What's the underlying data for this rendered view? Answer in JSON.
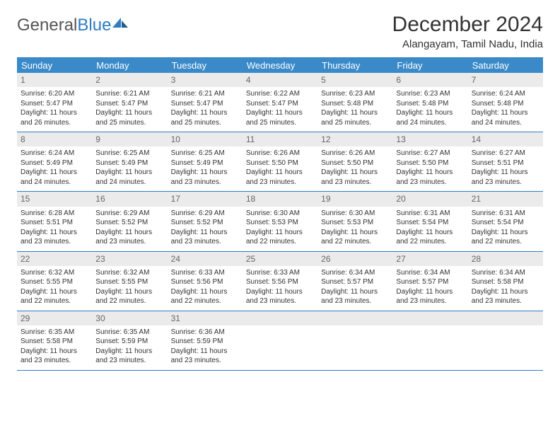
{
  "brand": {
    "part1": "General",
    "part2": "Blue"
  },
  "title": "December 2024",
  "location": "Alangayam, Tamil Nadu, India",
  "colors": {
    "header_bar": "#3a8ac9",
    "rule": "#2e7cc2",
    "daynum_bg": "#ebebeb",
    "text": "#333333",
    "white": "#ffffff"
  },
  "weekdays": [
    "Sunday",
    "Monday",
    "Tuesday",
    "Wednesday",
    "Thursday",
    "Friday",
    "Saturday"
  ],
  "weeks": [
    [
      {
        "n": "1",
        "sr": "6:20 AM",
        "ss": "5:47 PM",
        "dl": "11 hours and 26 minutes."
      },
      {
        "n": "2",
        "sr": "6:21 AM",
        "ss": "5:47 PM",
        "dl": "11 hours and 25 minutes."
      },
      {
        "n": "3",
        "sr": "6:21 AM",
        "ss": "5:47 PM",
        "dl": "11 hours and 25 minutes."
      },
      {
        "n": "4",
        "sr": "6:22 AM",
        "ss": "5:47 PM",
        "dl": "11 hours and 25 minutes."
      },
      {
        "n": "5",
        "sr": "6:23 AM",
        "ss": "5:48 PM",
        "dl": "11 hours and 25 minutes."
      },
      {
        "n": "6",
        "sr": "6:23 AM",
        "ss": "5:48 PM",
        "dl": "11 hours and 24 minutes."
      },
      {
        "n": "7",
        "sr": "6:24 AM",
        "ss": "5:48 PM",
        "dl": "11 hours and 24 minutes."
      }
    ],
    [
      {
        "n": "8",
        "sr": "6:24 AM",
        "ss": "5:49 PM",
        "dl": "11 hours and 24 minutes."
      },
      {
        "n": "9",
        "sr": "6:25 AM",
        "ss": "5:49 PM",
        "dl": "11 hours and 24 minutes."
      },
      {
        "n": "10",
        "sr": "6:25 AM",
        "ss": "5:49 PM",
        "dl": "11 hours and 23 minutes."
      },
      {
        "n": "11",
        "sr": "6:26 AM",
        "ss": "5:50 PM",
        "dl": "11 hours and 23 minutes."
      },
      {
        "n": "12",
        "sr": "6:26 AM",
        "ss": "5:50 PM",
        "dl": "11 hours and 23 minutes."
      },
      {
        "n": "13",
        "sr": "6:27 AM",
        "ss": "5:50 PM",
        "dl": "11 hours and 23 minutes."
      },
      {
        "n": "14",
        "sr": "6:27 AM",
        "ss": "5:51 PM",
        "dl": "11 hours and 23 minutes."
      }
    ],
    [
      {
        "n": "15",
        "sr": "6:28 AM",
        "ss": "5:51 PM",
        "dl": "11 hours and 23 minutes."
      },
      {
        "n": "16",
        "sr": "6:29 AM",
        "ss": "5:52 PM",
        "dl": "11 hours and 23 minutes."
      },
      {
        "n": "17",
        "sr": "6:29 AM",
        "ss": "5:52 PM",
        "dl": "11 hours and 23 minutes."
      },
      {
        "n": "18",
        "sr": "6:30 AM",
        "ss": "5:53 PM",
        "dl": "11 hours and 22 minutes."
      },
      {
        "n": "19",
        "sr": "6:30 AM",
        "ss": "5:53 PM",
        "dl": "11 hours and 22 minutes."
      },
      {
        "n": "20",
        "sr": "6:31 AM",
        "ss": "5:54 PM",
        "dl": "11 hours and 22 minutes."
      },
      {
        "n": "21",
        "sr": "6:31 AM",
        "ss": "5:54 PM",
        "dl": "11 hours and 22 minutes."
      }
    ],
    [
      {
        "n": "22",
        "sr": "6:32 AM",
        "ss": "5:55 PM",
        "dl": "11 hours and 22 minutes."
      },
      {
        "n": "23",
        "sr": "6:32 AM",
        "ss": "5:55 PM",
        "dl": "11 hours and 22 minutes."
      },
      {
        "n": "24",
        "sr": "6:33 AM",
        "ss": "5:56 PM",
        "dl": "11 hours and 22 minutes."
      },
      {
        "n": "25",
        "sr": "6:33 AM",
        "ss": "5:56 PM",
        "dl": "11 hours and 23 minutes."
      },
      {
        "n": "26",
        "sr": "6:34 AM",
        "ss": "5:57 PM",
        "dl": "11 hours and 23 minutes."
      },
      {
        "n": "27",
        "sr": "6:34 AM",
        "ss": "5:57 PM",
        "dl": "11 hours and 23 minutes."
      },
      {
        "n": "28",
        "sr": "6:34 AM",
        "ss": "5:58 PM",
        "dl": "11 hours and 23 minutes."
      }
    ],
    [
      {
        "n": "29",
        "sr": "6:35 AM",
        "ss": "5:58 PM",
        "dl": "11 hours and 23 minutes."
      },
      {
        "n": "30",
        "sr": "6:35 AM",
        "ss": "5:59 PM",
        "dl": "11 hours and 23 minutes."
      },
      {
        "n": "31",
        "sr": "6:36 AM",
        "ss": "5:59 PM",
        "dl": "11 hours and 23 minutes."
      },
      null,
      null,
      null,
      null
    ]
  ],
  "labels": {
    "sunrise": "Sunrise: ",
    "sunset": "Sunset: ",
    "daylight": "Daylight: "
  }
}
